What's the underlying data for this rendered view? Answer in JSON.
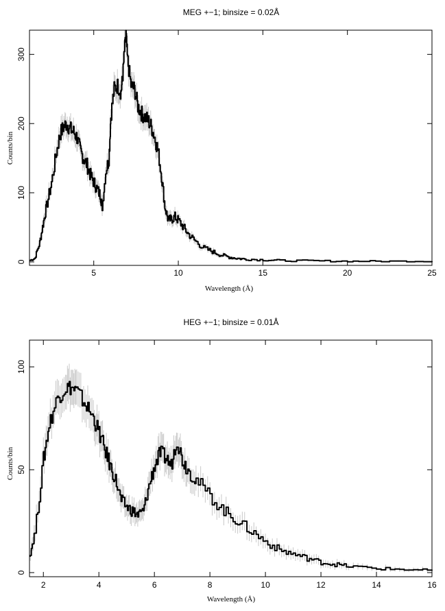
{
  "chart_data": [
    {
      "type": "line",
      "title": "MEG +−1; binsize = 0.02Å",
      "xlabel": "Wavelength (Å)",
      "ylabel": "Counts/bin",
      "xlim": [
        1.2,
        25
      ],
      "ylim": [
        -5,
        335
      ],
      "xticks": [
        5,
        10,
        15,
        20,
        25
      ],
      "yticks": [
        0,
        100,
        200,
        300
      ],
      "x": [
        1.2,
        1.5,
        1.8,
        2.0,
        2.2,
        2.5,
        2.8,
        3.0,
        3.2,
        3.4,
        3.6,
        3.8,
        4.0,
        4.2,
        4.4,
        4.6,
        4.8,
        5.0,
        5.2,
        5.4,
        5.5,
        5.7,
        5.9,
        6.0,
        6.2,
        6.4,
        6.6,
        6.7,
        6.8,
        6.9,
        7.0,
        7.2,
        7.4,
        7.6,
        7.8,
        8.0,
        8.2,
        8.4,
        8.6,
        8.8,
        9.0,
        9.2,
        9.4,
        9.6,
        9.8,
        10.0,
        10.3,
        10.6,
        11.0,
        11.5,
        12.0,
        12.5,
        13.0,
        13.5,
        14.0,
        15.0,
        16.0,
        18.0,
        20.0,
        22.0,
        25.0
      ],
      "series": [
        {
          "values": [
            2,
            5,
            28,
            55,
            80,
            115,
            160,
            185,
            195,
            200,
            192,
            188,
            180,
            160,
            150,
            140,
            125,
            115,
            105,
            95,
            80,
            130,
            150,
            210,
            250,
            255,
            245,
            265,
            300,
            330,
            290,
            255,
            250,
            225,
            215,
            210,
            205,
            195,
            180,
            160,
            125,
            80,
            60,
            62,
            65,
            60,
            50,
            40,
            30,
            20,
            15,
            10,
            7,
            5,
            4,
            3,
            2,
            1.5,
            1,
            1,
            1
          ]
        }
      ]
    },
    {
      "type": "line",
      "title": "HEG +−1; binsize = 0.01Å",
      "xlabel": "Wavelength (Å)",
      "ylabel": "Counts/bin",
      "xlim": [
        1.5,
        16
      ],
      "ylim": [
        -2,
        113
      ],
      "xticks": [
        2,
        4,
        6,
        8,
        10,
        12,
        14,
        16
      ],
      "yticks": [
        0,
        50,
        100
      ],
      "x": [
        1.5,
        1.7,
        2.0,
        2.2,
        2.5,
        2.8,
        3.0,
        3.2,
        3.5,
        3.8,
        4.0,
        4.2,
        4.4,
        4.6,
        4.8,
        5.0,
        5.2,
        5.4,
        5.6,
        5.8,
        6.0,
        6.2,
        6.4,
        6.6,
        6.8,
        7.0,
        7.2,
        7.5,
        8.0,
        8.5,
        9.0,
        9.5,
        10.0,
        10.5,
        11.0,
        11.5,
        12.0,
        12.5,
        13.0,
        14.0,
        15.0,
        16.0
      ],
      "series": [
        {
          "values": [
            8,
            20,
            55,
            72,
            85,
            90,
            90,
            88,
            82,
            75,
            68,
            60,
            52,
            45,
            35,
            32,
            30,
            28,
            30,
            42,
            52,
            58,
            56,
            52,
            65,
            55,
            50,
            45,
            37,
            30,
            25,
            20,
            15,
            11,
            9,
            7,
            5,
            4,
            3,
            2,
            1.5,
            1
          ]
        }
      ]
    }
  ]
}
